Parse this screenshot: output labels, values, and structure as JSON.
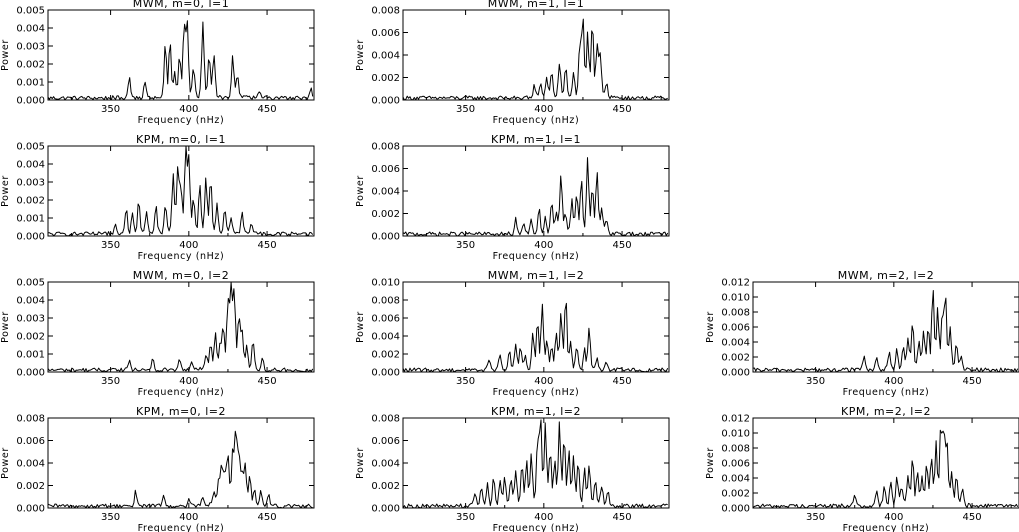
{
  "xlabel": "Frequency (nHz)",
  "ylabel": "Power",
  "colors": {
    "trace": "#000000",
    "background": "#ffffff"
  },
  "chart_data": [
    {
      "type": "line",
      "row": 0,
      "col": 0,
      "title": "MWM, m=0, l=1",
      "xlim": [
        310,
        480
      ],
      "ylim": [
        0,
        0.005
      ],
      "xticks": [
        "350",
        "400",
        "450"
      ],
      "yticks": [
        "0.000",
        "0.001",
        "0.002",
        "0.003",
        "0.004",
        "0.005"
      ],
      "peaks": [
        [
          362,
          0.0012
        ],
        [
          372,
          0.0009
        ],
        [
          385,
          0.0029
        ],
        [
          388,
          0.003
        ],
        [
          391,
          0.0013
        ],
        [
          394,
          0.0023
        ],
        [
          397,
          0.0039
        ],
        [
          399,
          0.0042
        ],
        [
          403,
          0.0016
        ],
        [
          409,
          0.0041
        ],
        [
          413,
          0.0024
        ],
        [
          416,
          0.0023
        ],
        [
          428,
          0.0023
        ],
        [
          431,
          0.0013
        ],
        [
          445,
          0.0004
        ],
        [
          478,
          0.0006
        ]
      ]
    },
    {
      "type": "line",
      "row": 0,
      "col": 1,
      "title": "MWM, m=1, l=1",
      "xlim": [
        310,
        480
      ],
      "ylim": [
        0,
        0.008
      ],
      "xticks": [
        "350",
        "400",
        "450"
      ],
      "yticks": [
        "0.000",
        "0.002",
        "0.004",
        "0.006",
        "0.008"
      ],
      "peaks": [
        [
          394,
          0.0011
        ],
        [
          398,
          0.0014
        ],
        [
          402,
          0.0017
        ],
        [
          405,
          0.0023
        ],
        [
          410,
          0.0031
        ],
        [
          414,
          0.0026
        ],
        [
          419,
          0.0021
        ],
        [
          423,
          0.0047
        ],
        [
          425,
          0.0068
        ],
        [
          428,
          0.0055
        ],
        [
          431,
          0.0066
        ],
        [
          434,
          0.0045
        ],
        [
          436,
          0.0039
        ],
        [
          440,
          0.0012
        ]
      ]
    },
    {
      "type": "line",
      "row": 1,
      "col": 0,
      "title": "KPM, m=0, l=1",
      "xlim": [
        310,
        480
      ],
      "ylim": [
        0,
        0.005
      ],
      "xticks": [
        "350",
        "400",
        "450"
      ],
      "yticks": [
        "0.000",
        "0.001",
        "0.002",
        "0.003",
        "0.004",
        "0.005"
      ],
      "peaks": [
        [
          353,
          0.0006
        ],
        [
          360,
          0.0015
        ],
        [
          364,
          0.0012
        ],
        [
          368,
          0.0018
        ],
        [
          373,
          0.0012
        ],
        [
          379,
          0.0015
        ],
        [
          385,
          0.0016
        ],
        [
          390,
          0.0032
        ],
        [
          393,
          0.0036
        ],
        [
          395,
          0.0025
        ],
        [
          398,
          0.0045
        ],
        [
          400,
          0.0041
        ],
        [
          403,
          0.0017
        ],
        [
          407,
          0.0027
        ],
        [
          411,
          0.003
        ],
        [
          414,
          0.003
        ],
        [
          418,
          0.0016
        ],
        [
          423,
          0.0013
        ],
        [
          427,
          0.0009
        ],
        [
          434,
          0.0012
        ],
        [
          440,
          0.0006
        ]
      ]
    },
    {
      "type": "line",
      "row": 1,
      "col": 1,
      "title": "KPM, m=1, l=1",
      "xlim": [
        310,
        480
      ],
      "ylim": [
        0,
        0.008
      ],
      "xticks": [
        "350",
        "400",
        "450"
      ],
      "yticks": [
        "0.000",
        "0.002",
        "0.004",
        "0.006",
        "0.008"
      ],
      "peaks": [
        [
          382,
          0.0013
        ],
        [
          387,
          0.0008
        ],
        [
          392,
          0.0012
        ],
        [
          397,
          0.0022
        ],
        [
          401,
          0.0015
        ],
        [
          405,
          0.0028
        ],
        [
          408,
          0.0018
        ],
        [
          411,
          0.0052
        ],
        [
          414,
          0.0017
        ],
        [
          418,
          0.0028
        ],
        [
          421,
          0.0034
        ],
        [
          424,
          0.0048
        ],
        [
          428,
          0.0065
        ],
        [
          431,
          0.0041
        ],
        [
          434,
          0.0056
        ],
        [
          437,
          0.0023
        ],
        [
          440,
          0.0011
        ]
      ]
    },
    {
      "type": "line",
      "row": 2,
      "col": 0,
      "title": "MWM, m=0, l=2",
      "xlim": [
        310,
        480
      ],
      "ylim": [
        0,
        0.005
      ],
      "xticks": [
        "350",
        "400",
        "450"
      ],
      "yticks": [
        "0.000",
        "0.001",
        "0.002",
        "0.003",
        "0.004",
        "0.005"
      ],
      "peaks": [
        [
          362,
          0.0006
        ],
        [
          377,
          0.0007
        ],
        [
          394,
          0.0007
        ],
        [
          402,
          0.0005
        ],
        [
          411,
          0.0008
        ],
        [
          414,
          0.0014
        ],
        [
          417,
          0.0019
        ],
        [
          420,
          0.0013
        ],
        [
          422,
          0.0024
        ],
        [
          425,
          0.0037
        ],
        [
          427,
          0.0046
        ],
        [
          429,
          0.0042
        ],
        [
          432,
          0.0029
        ],
        [
          434,
          0.0022
        ],
        [
          437,
          0.0012
        ],
        [
          441,
          0.0015
        ],
        [
          447,
          0.0006
        ]
      ]
    },
    {
      "type": "line",
      "row": 2,
      "col": 1,
      "title": "MWM, m=1, l=2",
      "xlim": [
        310,
        480
      ],
      "ylim": [
        0,
        0.01
      ],
      "xticks": [
        "350",
        "400",
        "450"
      ],
      "yticks": [
        "0.000",
        "0.002",
        "0.004",
        "0.006",
        "0.008",
        "0.010"
      ],
      "peaks": [
        [
          365,
          0.0012
        ],
        [
          372,
          0.0017
        ],
        [
          378,
          0.0023
        ],
        [
          382,
          0.0029
        ],
        [
          385,
          0.0023
        ],
        [
          388,
          0.0014
        ],
        [
          393,
          0.0038
        ],
        [
          396,
          0.0055
        ],
        [
          399,
          0.0072
        ],
        [
          402,
          0.0031
        ],
        [
          405,
          0.0025
        ],
        [
          408,
          0.004
        ],
        [
          411,
          0.006
        ],
        [
          414,
          0.0082
        ],
        [
          417,
          0.0031
        ],
        [
          421,
          0.0023
        ],
        [
          426,
          0.0022
        ],
        [
          429,
          0.0047
        ],
        [
          434,
          0.0012
        ],
        [
          440,
          0.0008
        ]
      ]
    },
    {
      "type": "line",
      "row": 2,
      "col": 2,
      "title": "MWM, m=2, l=2",
      "xlim": [
        310,
        480
      ],
      "ylim": [
        0,
        0.012
      ],
      "xticks": [
        "350",
        "400",
        "450"
      ],
      "yticks": [
        "0.000",
        "0.002",
        "0.004",
        "0.006",
        "0.008",
        "0.010",
        "0.012"
      ],
      "peaks": [
        [
          381,
          0.0021
        ],
        [
          389,
          0.0018
        ],
        [
          397,
          0.0022
        ],
        [
          402,
          0.0026
        ],
        [
          406,
          0.0031
        ],
        [
          409,
          0.0043
        ],
        [
          412,
          0.0062
        ],
        [
          416,
          0.0038
        ],
        [
          419,
          0.0048
        ],
        [
          422,
          0.0056
        ],
        [
          425,
          0.0105
        ],
        [
          428,
          0.0082
        ],
        [
          431,
          0.0072
        ],
        [
          433,
          0.0098
        ],
        [
          436,
          0.0052
        ],
        [
          440,
          0.0034
        ],
        [
          443,
          0.0017
        ]
      ]
    },
    {
      "type": "line",
      "row": 3,
      "col": 0,
      "title": "KPM, m=0, l=2",
      "xlim": [
        310,
        480
      ],
      "ylim": [
        0,
        0.008
      ],
      "xticks": [
        "350",
        "400",
        "450"
      ],
      "yticks": [
        "0.000",
        "0.002",
        "0.004",
        "0.006",
        "0.008"
      ],
      "peaks": [
        [
          366,
          0.0013
        ],
        [
          384,
          0.0009
        ],
        [
          400,
          0.0007
        ],
        [
          409,
          0.0008
        ],
        [
          416,
          0.0013
        ],
        [
          419,
          0.0022
        ],
        [
          421,
          0.0034
        ],
        [
          423,
          0.0029
        ],
        [
          425,
          0.0042
        ],
        [
          428,
          0.0045
        ],
        [
          430,
          0.0065
        ],
        [
          432,
          0.0047
        ],
        [
          434,
          0.0026
        ],
        [
          436,
          0.0036
        ],
        [
          439,
          0.0025
        ],
        [
          442,
          0.0013
        ],
        [
          446,
          0.0012
        ],
        [
          451,
          0.0009
        ]
      ]
    },
    {
      "type": "line",
      "row": 3,
      "col": 1,
      "title": "KPM, m=1, l=2",
      "xlim": [
        310,
        480
      ],
      "ylim": [
        0,
        0.008
      ],
      "xticks": [
        "350",
        "400",
        "450"
      ],
      "yticks": [
        "0.000",
        "0.002",
        "0.004",
        "0.006",
        "0.008"
      ],
      "peaks": [
        [
          356,
          0.0012
        ],
        [
          360,
          0.0016
        ],
        [
          364,
          0.0019
        ],
        [
          368,
          0.0025
        ],
        [
          372,
          0.0023
        ],
        [
          375,
          0.0027
        ],
        [
          379,
          0.0022
        ],
        [
          382,
          0.003
        ],
        [
          386,
          0.0035
        ],
        [
          389,
          0.0038
        ],
        [
          392,
          0.0043
        ],
        [
          396,
          0.0058
        ],
        [
          398,
          0.0075
        ],
        [
          401,
          0.0072
        ],
        [
          404,
          0.0048
        ],
        [
          407,
          0.0036
        ],
        [
          410,
          0.0071
        ],
        [
          413,
          0.006
        ],
        [
          416,
          0.0047
        ],
        [
          419,
          0.0042
        ],
        [
          422,
          0.0038
        ],
        [
          426,
          0.0032
        ],
        [
          429,
          0.0036
        ],
        [
          433,
          0.0022
        ],
        [
          437,
          0.0018
        ],
        [
          441,
          0.0013
        ]
      ]
    },
    {
      "type": "line",
      "row": 3,
      "col": 2,
      "title": "KPM, m=2, l=2",
      "xlim": [
        310,
        480
      ],
      "ylim": [
        0,
        0.012
      ],
      "xticks": [
        "350",
        "400",
        "450"
      ],
      "yticks": [
        "0.000",
        "0.002",
        "0.004",
        "0.006",
        "0.008",
        "0.010",
        "0.012"
      ],
      "peaks": [
        [
          375,
          0.0013
        ],
        [
          389,
          0.0023
        ],
        [
          394,
          0.0027
        ],
        [
          398,
          0.0032
        ],
        [
          402,
          0.0038
        ],
        [
          405,
          0.0026
        ],
        [
          409,
          0.0041
        ],
        [
          412,
          0.0065
        ],
        [
          415,
          0.0042
        ],
        [
          418,
          0.0038
        ],
        [
          421,
          0.0053
        ],
        [
          424,
          0.0065
        ],
        [
          427,
          0.0082
        ],
        [
          430,
          0.0106
        ],
        [
          432,
          0.0098
        ],
        [
          434,
          0.0079
        ],
        [
          437,
          0.0042
        ],
        [
          440,
          0.0038
        ],
        [
          444,
          0.0023
        ]
      ]
    }
  ]
}
